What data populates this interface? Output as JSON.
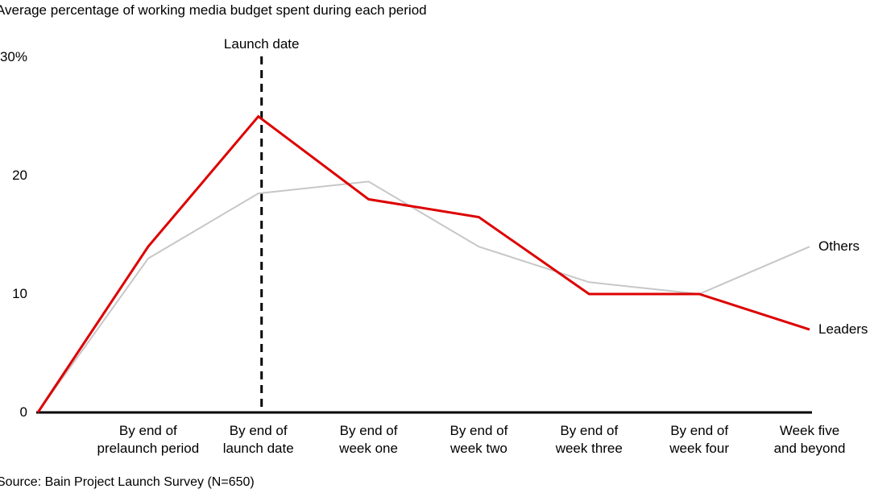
{
  "source": "Source: Bain Project Launch Survey (N=650)",
  "chart_data": {
    "type": "line",
    "title": "Average percentage of working media budget spent during each period",
    "x_categories": [
      "By end of\nprelaunch period",
      "By end of\nlaunch date",
      "By end of\nweek one",
      "By end of\nweek two",
      "By end of\nweek three",
      "By end of\nweek four",
      "Week five\nand beyond"
    ],
    "x_includes_leading_origin_point": true,
    "series": [
      {
        "name": "Leaders",
        "color": "#dd0000",
        "values": [
          0,
          14,
          25,
          18,
          16.5,
          10,
          10,
          7
        ]
      },
      {
        "name": "Others",
        "color": "#c7c7c7",
        "values": [
          0,
          13,
          18.5,
          19.5,
          14,
          11,
          10,
          14
        ]
      }
    ],
    "y_axis": {
      "min": 0,
      "max": 30,
      "ticks": [
        {
          "label": "30%",
          "value": 30
        },
        {
          "label": "20",
          "value": 20
        },
        {
          "label": "10",
          "value": 10
        },
        {
          "label": "0",
          "value": 0
        }
      ]
    },
    "annotation": {
      "label": "Launch date",
      "at_point_index": 2,
      "style": "vertical-dashed-line"
    },
    "legend": {
      "position": "line-end-labels",
      "entries": [
        "Others",
        "Leaders"
      ]
    },
    "axis_color": "#000000",
    "text_color": "#000000",
    "grid": false
  }
}
